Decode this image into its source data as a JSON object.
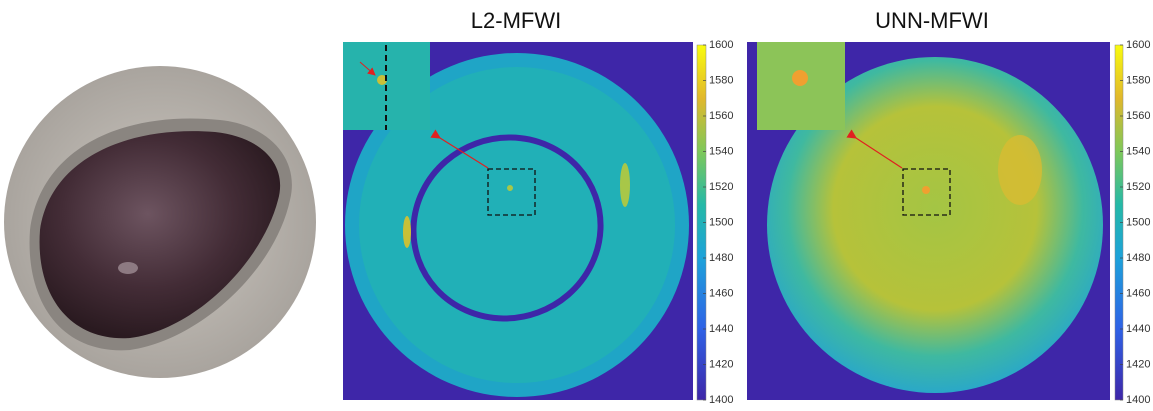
{
  "panels": [
    {
      "title": "L2-MFWI",
      "colorbar": {
        "lim": [
          1400,
          1600
        ],
        "ticks": [
          1400,
          1420,
          1440,
          1460,
          1480,
          1500,
          1520,
          1540,
          1560,
          1580,
          1600
        ]
      }
    },
    {
      "title": "UNN-MFWI",
      "colorbar": {
        "lim": [
          1400,
          1600
        ],
        "ticks": [
          1400,
          1420,
          1440,
          1460,
          1480,
          1500,
          1520,
          1540,
          1560,
          1580,
          1600
        ]
      }
    }
  ]
}
